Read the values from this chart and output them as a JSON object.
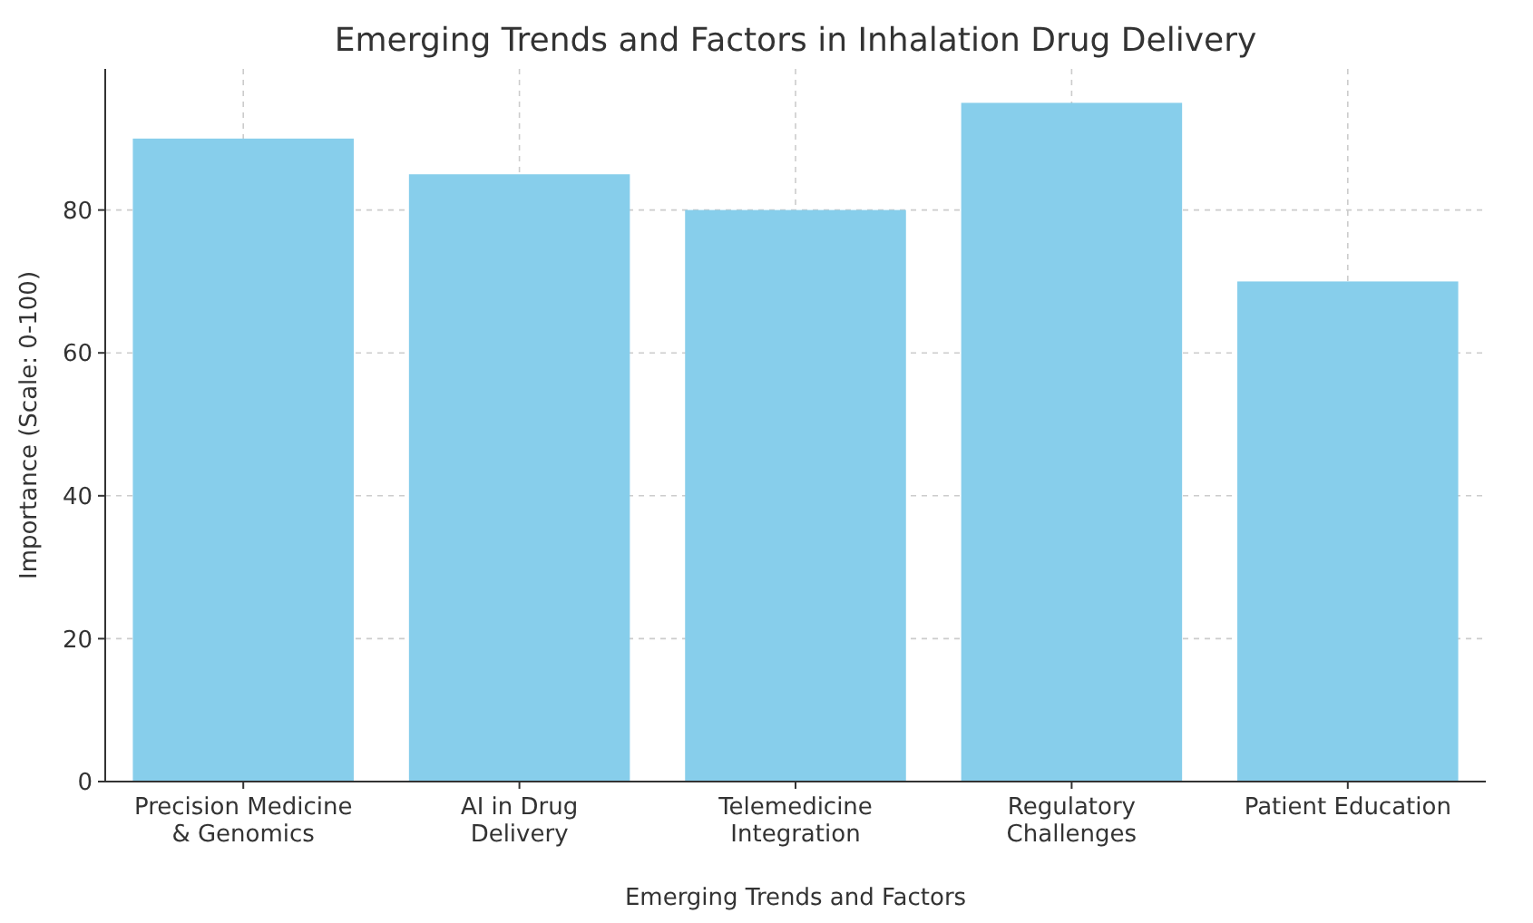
{
  "chart_data": {
    "type": "bar",
    "title": "Emerging Trends and Factors in Inhalation Drug Delivery",
    "xlabel": "Emerging Trends and Factors",
    "ylabel": "Importance (Scale: 0-100)",
    "categories": [
      "Precision Medicine & Genomics",
      "AI in Drug Delivery",
      "Telemedicine Integration",
      "Regulatory Challenges",
      "Patient Education"
    ],
    "values": [
      90,
      85,
      80,
      95,
      70
    ],
    "color": "#87ceeb",
    "ylim": [
      0,
      99.75
    ],
    "yticks": [
      0,
      20,
      40,
      60,
      80
    ],
    "grid": true
  }
}
